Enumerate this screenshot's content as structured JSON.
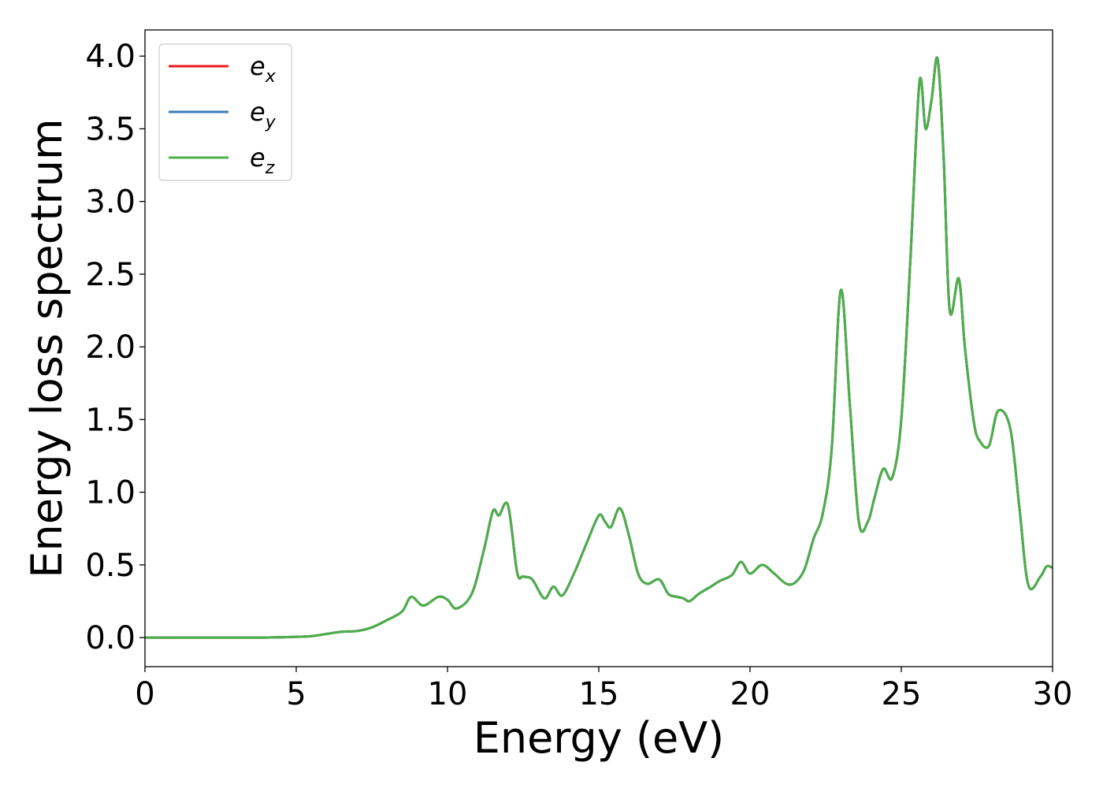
{
  "chart_data": {
    "type": "line",
    "title": "",
    "xlabel": "Energy (eV)",
    "ylabel": "Energy loss spectrum",
    "xlim": [
      0,
      30
    ],
    "ylim": [
      -0.2,
      4.18
    ],
    "xticks": [
      0,
      5,
      10,
      15,
      20,
      25,
      30
    ],
    "xtick_labels": [
      "0",
      "5",
      "10",
      "15",
      "20",
      "25",
      "30"
    ],
    "yticks": [
      0.0,
      0.5,
      1.0,
      1.5,
      2.0,
      2.5,
      3.0,
      3.5,
      4.0
    ],
    "ytick_labels": [
      "0.0",
      "0.5",
      "1.0",
      "1.5",
      "2.0",
      "2.5",
      "3.0",
      "3.5",
      "4.0"
    ],
    "grid": false,
    "legend_position": "top-left",
    "series": [
      {
        "name": "e",
        "subscript": "x",
        "color": "#e41a1c"
      },
      {
        "name": "e",
        "subscript": "y",
        "color": "#377eb8"
      },
      {
        "name": "e",
        "subscript": "z",
        "color": "#4daf4a"
      }
    ],
    "x": [
      0,
      1,
      2,
      3,
      4,
      5,
      5.5,
      6,
      6.5,
      7,
      7.5,
      8,
      8.5,
      8.8,
      9.2,
      9.7,
      10.0,
      10.3,
      10.8,
      11.2,
      11.5,
      11.7,
      12.0,
      12.3,
      12.5,
      12.8,
      13.2,
      13.5,
      13.8,
      14.2,
      14.6,
      15.0,
      15.2,
      15.4,
      15.7,
      16.0,
      16.3,
      16.6,
      17.0,
      17.3,
      17.6,
      17.8,
      18.0,
      18.3,
      18.7,
      19.0,
      19.4,
      19.7,
      20.0,
      20.4,
      20.8,
      21.2,
      21.5,
      21.8,
      22.1,
      22.4,
      22.7,
      23.0,
      23.3,
      23.6,
      23.9,
      24.1,
      24.4,
      24.7,
      25.0,
      25.3,
      25.6,
      25.8,
      26.0,
      26.2,
      26.4,
      26.6,
      26.9,
      27.1,
      27.4,
      27.6,
      27.9,
      28.2,
      28.6,
      28.9,
      29.2,
      29.6,
      29.8,
      30.0
    ],
    "values": [
      0.0,
      0.0,
      0.0,
      0.0,
      0.0,
      0.005,
      0.01,
      0.025,
      0.04,
      0.045,
      0.07,
      0.12,
      0.18,
      0.28,
      0.22,
      0.28,
      0.26,
      0.2,
      0.3,
      0.6,
      0.87,
      0.84,
      0.91,
      0.45,
      0.42,
      0.4,
      0.27,
      0.35,
      0.29,
      0.45,
      0.65,
      0.84,
      0.8,
      0.76,
      0.89,
      0.7,
      0.44,
      0.37,
      0.4,
      0.3,
      0.28,
      0.27,
      0.25,
      0.3,
      0.35,
      0.39,
      0.43,
      0.52,
      0.44,
      0.5,
      0.44,
      0.37,
      0.38,
      0.47,
      0.68,
      0.85,
      1.3,
      2.39,
      1.6,
      0.79,
      0.8,
      0.95,
      1.16,
      1.1,
      1.5,
      2.6,
      3.82,
      3.5,
      3.7,
      3.98,
      3.3,
      2.25,
      2.47,
      2.0,
      1.48,
      1.35,
      1.32,
      1.56,
      1.44,
      0.9,
      0.36,
      0.42,
      0.49,
      0.48
    ]
  }
}
